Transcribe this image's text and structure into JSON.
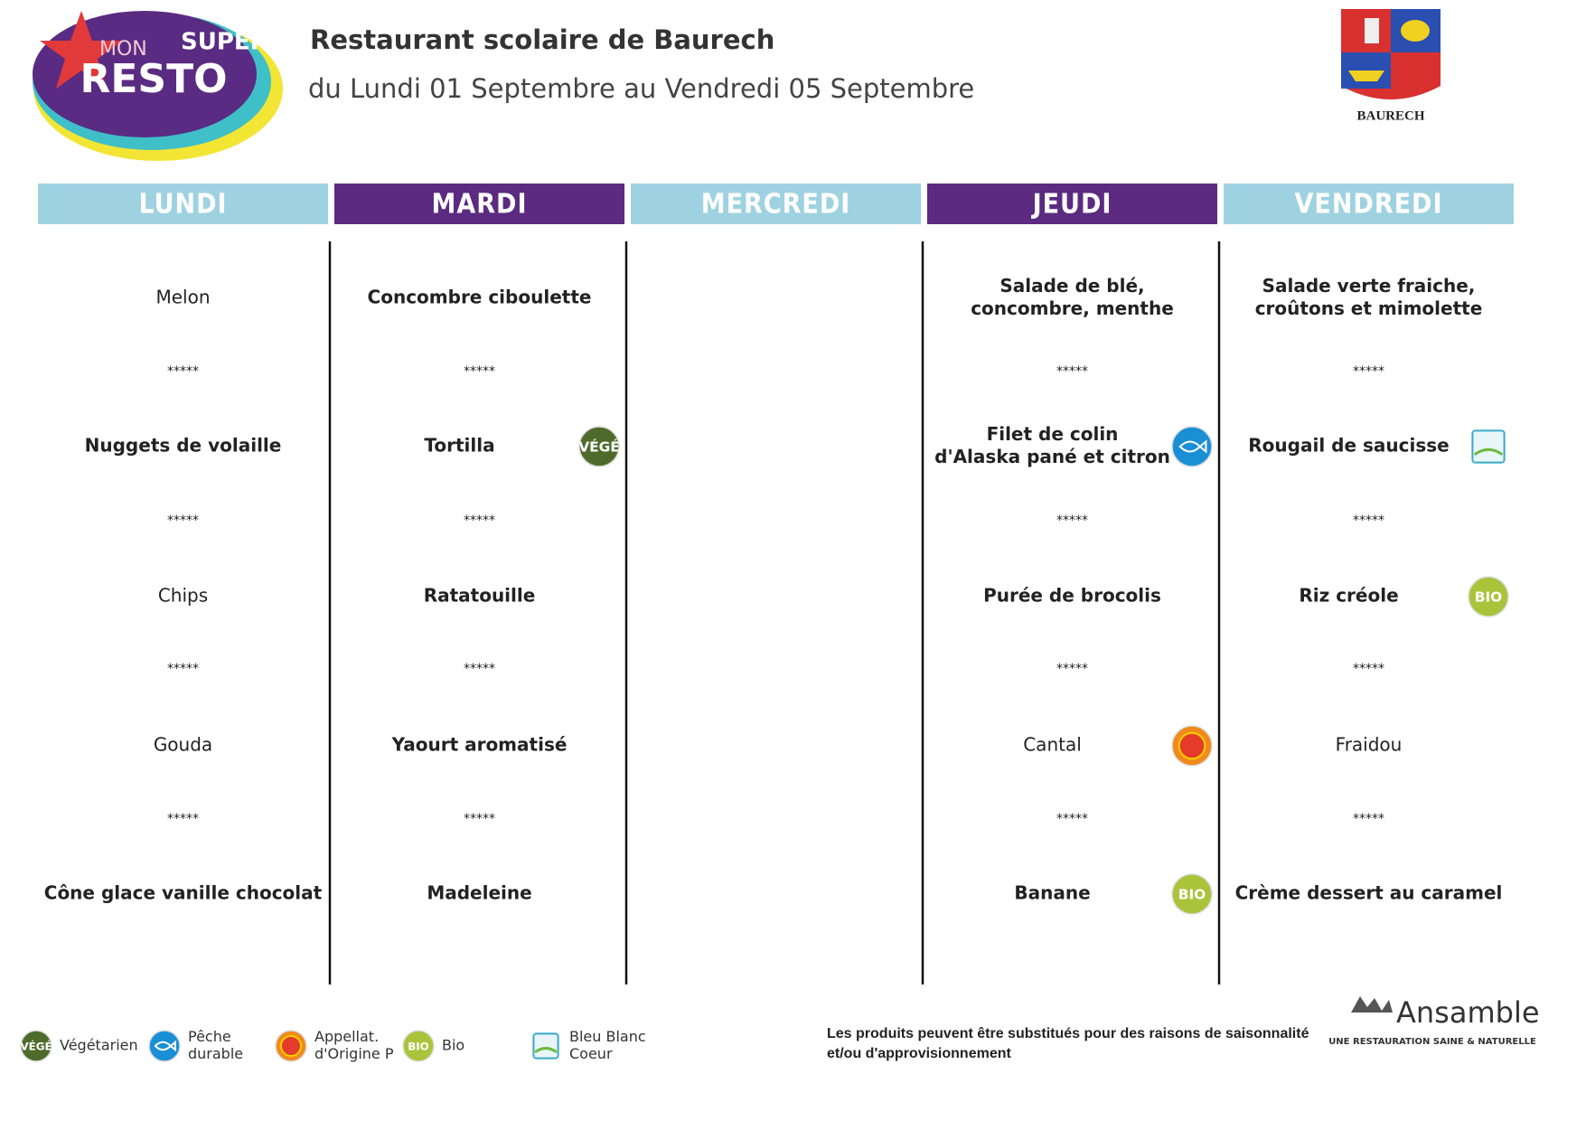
{
  "header": {
    "title": "Restaurant scolaire de Baurech",
    "subtitle": "du Lundi 01 Septembre au Vendredi 05 Septembre",
    "logo": [
      "MON",
      "SUPER",
      "RESTO"
    ],
    "town": "BAURECH"
  },
  "separator": "*****",
  "days": [
    {
      "name": "LUNDI",
      "color": "#9fd2e0",
      "items": [
        {
          "text": [
            "Melon"
          ]
        },
        {
          "text": [
            "Nuggets de volaille"
          ],
          "bold": true
        },
        {
          "text": [
            "Chips"
          ]
        },
        {
          "text": [
            "Gouda"
          ]
        },
        {
          "text": [
            "Cône glace vanille chocolat"
          ],
          "bold": true
        }
      ]
    },
    {
      "name": "MARDI",
      "color": "#5c2a80",
      "items": [
        {
          "text": [
            "Concombre ciboulette"
          ],
          "bold": true
        },
        {
          "text": [
            "Tortilla"
          ],
          "bold": true,
          "badge": "Végétarien"
        },
        {
          "text": [
            "Ratatouille"
          ],
          "bold": true
        },
        {
          "text": [
            "Yaourt aromatisé"
          ],
          "bold": true
        },
        {
          "text": [
            "Madeleine"
          ],
          "bold": true
        }
      ]
    },
    {
      "name": "MERCREDI",
      "color": "#9fd2e0",
      "items": []
    },
    {
      "name": "JEUDI",
      "color": "#5c2a80",
      "items": [
        {
          "text": [
            "Salade de blé,",
            "concombre, menthe"
          ],
          "bold": true
        },
        {
          "text": [
            "Filet de colin",
            "d'Alaska pané et citron"
          ],
          "bold": true,
          "badge": "Pêche durable"
        },
        {
          "text": [
            "Purée de brocolis"
          ],
          "bold": true
        },
        {
          "text": [
            "Cantal"
          ],
          "badge": "Appellat. d'Origine P"
        },
        {
          "text": [
            "Banane"
          ],
          "bold": true,
          "badge": "Bio"
        }
      ]
    },
    {
      "name": "VENDREDI",
      "color": "#9fd2e0",
      "items": [
        {
          "text": [
            "Salade verte fraiche,",
            "croûtons et mimolette"
          ],
          "bold": true
        },
        {
          "text": [
            "Rougail de saucisse"
          ],
          "bold": true,
          "badge": "Bleu Blanc Coeur"
        },
        {
          "text": [
            "Riz créole"
          ],
          "bold": true,
          "badge": "Bio"
        },
        {
          "text": [
            "Fraidou"
          ]
        },
        {
          "text": [
            "Crème dessert au caramel"
          ],
          "bold": true
        }
      ]
    }
  ],
  "legend": [
    {
      "key": "Végétarien",
      "label": [
        "Végétarien"
      ],
      "icon_text": "VÉGÉ",
      "color": "#4e6b2c"
    },
    {
      "key": "Pêche durable",
      "label": [
        "Pêche",
        "durable"
      ],
      "color": "#1a8fd6"
    },
    {
      "key": "Appellat. d'Origine P",
      "label": [
        "Appellat.",
        "d'Origine P"
      ],
      "color": "#f08a1c"
    },
    {
      "key": "Bio",
      "label": [
        "Bio"
      ],
      "icon_text": "BIO",
      "color": "#a9c43a"
    },
    {
      "key": "Bleu Blanc Coeur",
      "label": [
        "Bleu Blanc",
        "Coeur"
      ],
      "color": "#3aa9c9"
    }
  ],
  "note": [
    "Les produits peuvent être substitués pour des raisons de saisonnalité",
    "et/ou d'approvisionnement"
  ],
  "brand": {
    "name": "Ansamble",
    "tagline": "UNE RESTAURATION SAINE & NATURELLE"
  }
}
